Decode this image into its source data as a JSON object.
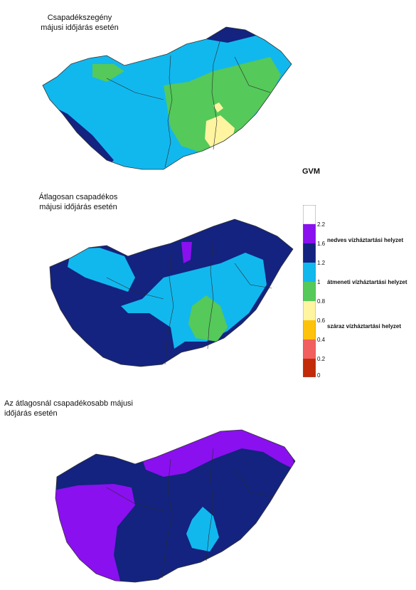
{
  "maps": [
    {
      "title_line1": "Csapadékszegény",
      "title_line2": "májusi időjárás esetén"
    },
    {
      "title_line1": "Átlagosan csapadékos",
      "title_line2": "májusi időjárás esetén"
    },
    {
      "title_line1": "Az átlagosnál csapadékosabb májusi",
      "title_line2": "időjárás esetén"
    }
  ],
  "legend": {
    "title": "GVM",
    "ticks": [
      "2.2",
      "1.6",
      "1.2",
      "1",
      "0.8",
      "0.6",
      "0.4",
      "0.2",
      "0"
    ],
    "classes": {
      "wet": "nedves vízháztartási helyzet",
      "transitional": "átmeneti vízháztartási helyzet",
      "dry": "száraz vízháztartási helyzet"
    },
    "colors": [
      "#ffffff",
      "#8a10f0",
      "#13237f",
      "#11b8ee",
      "#55c95a",
      "#fff4a0",
      "#ffc20a",
      "#f25f5f",
      "#c32a08"
    ]
  }
}
